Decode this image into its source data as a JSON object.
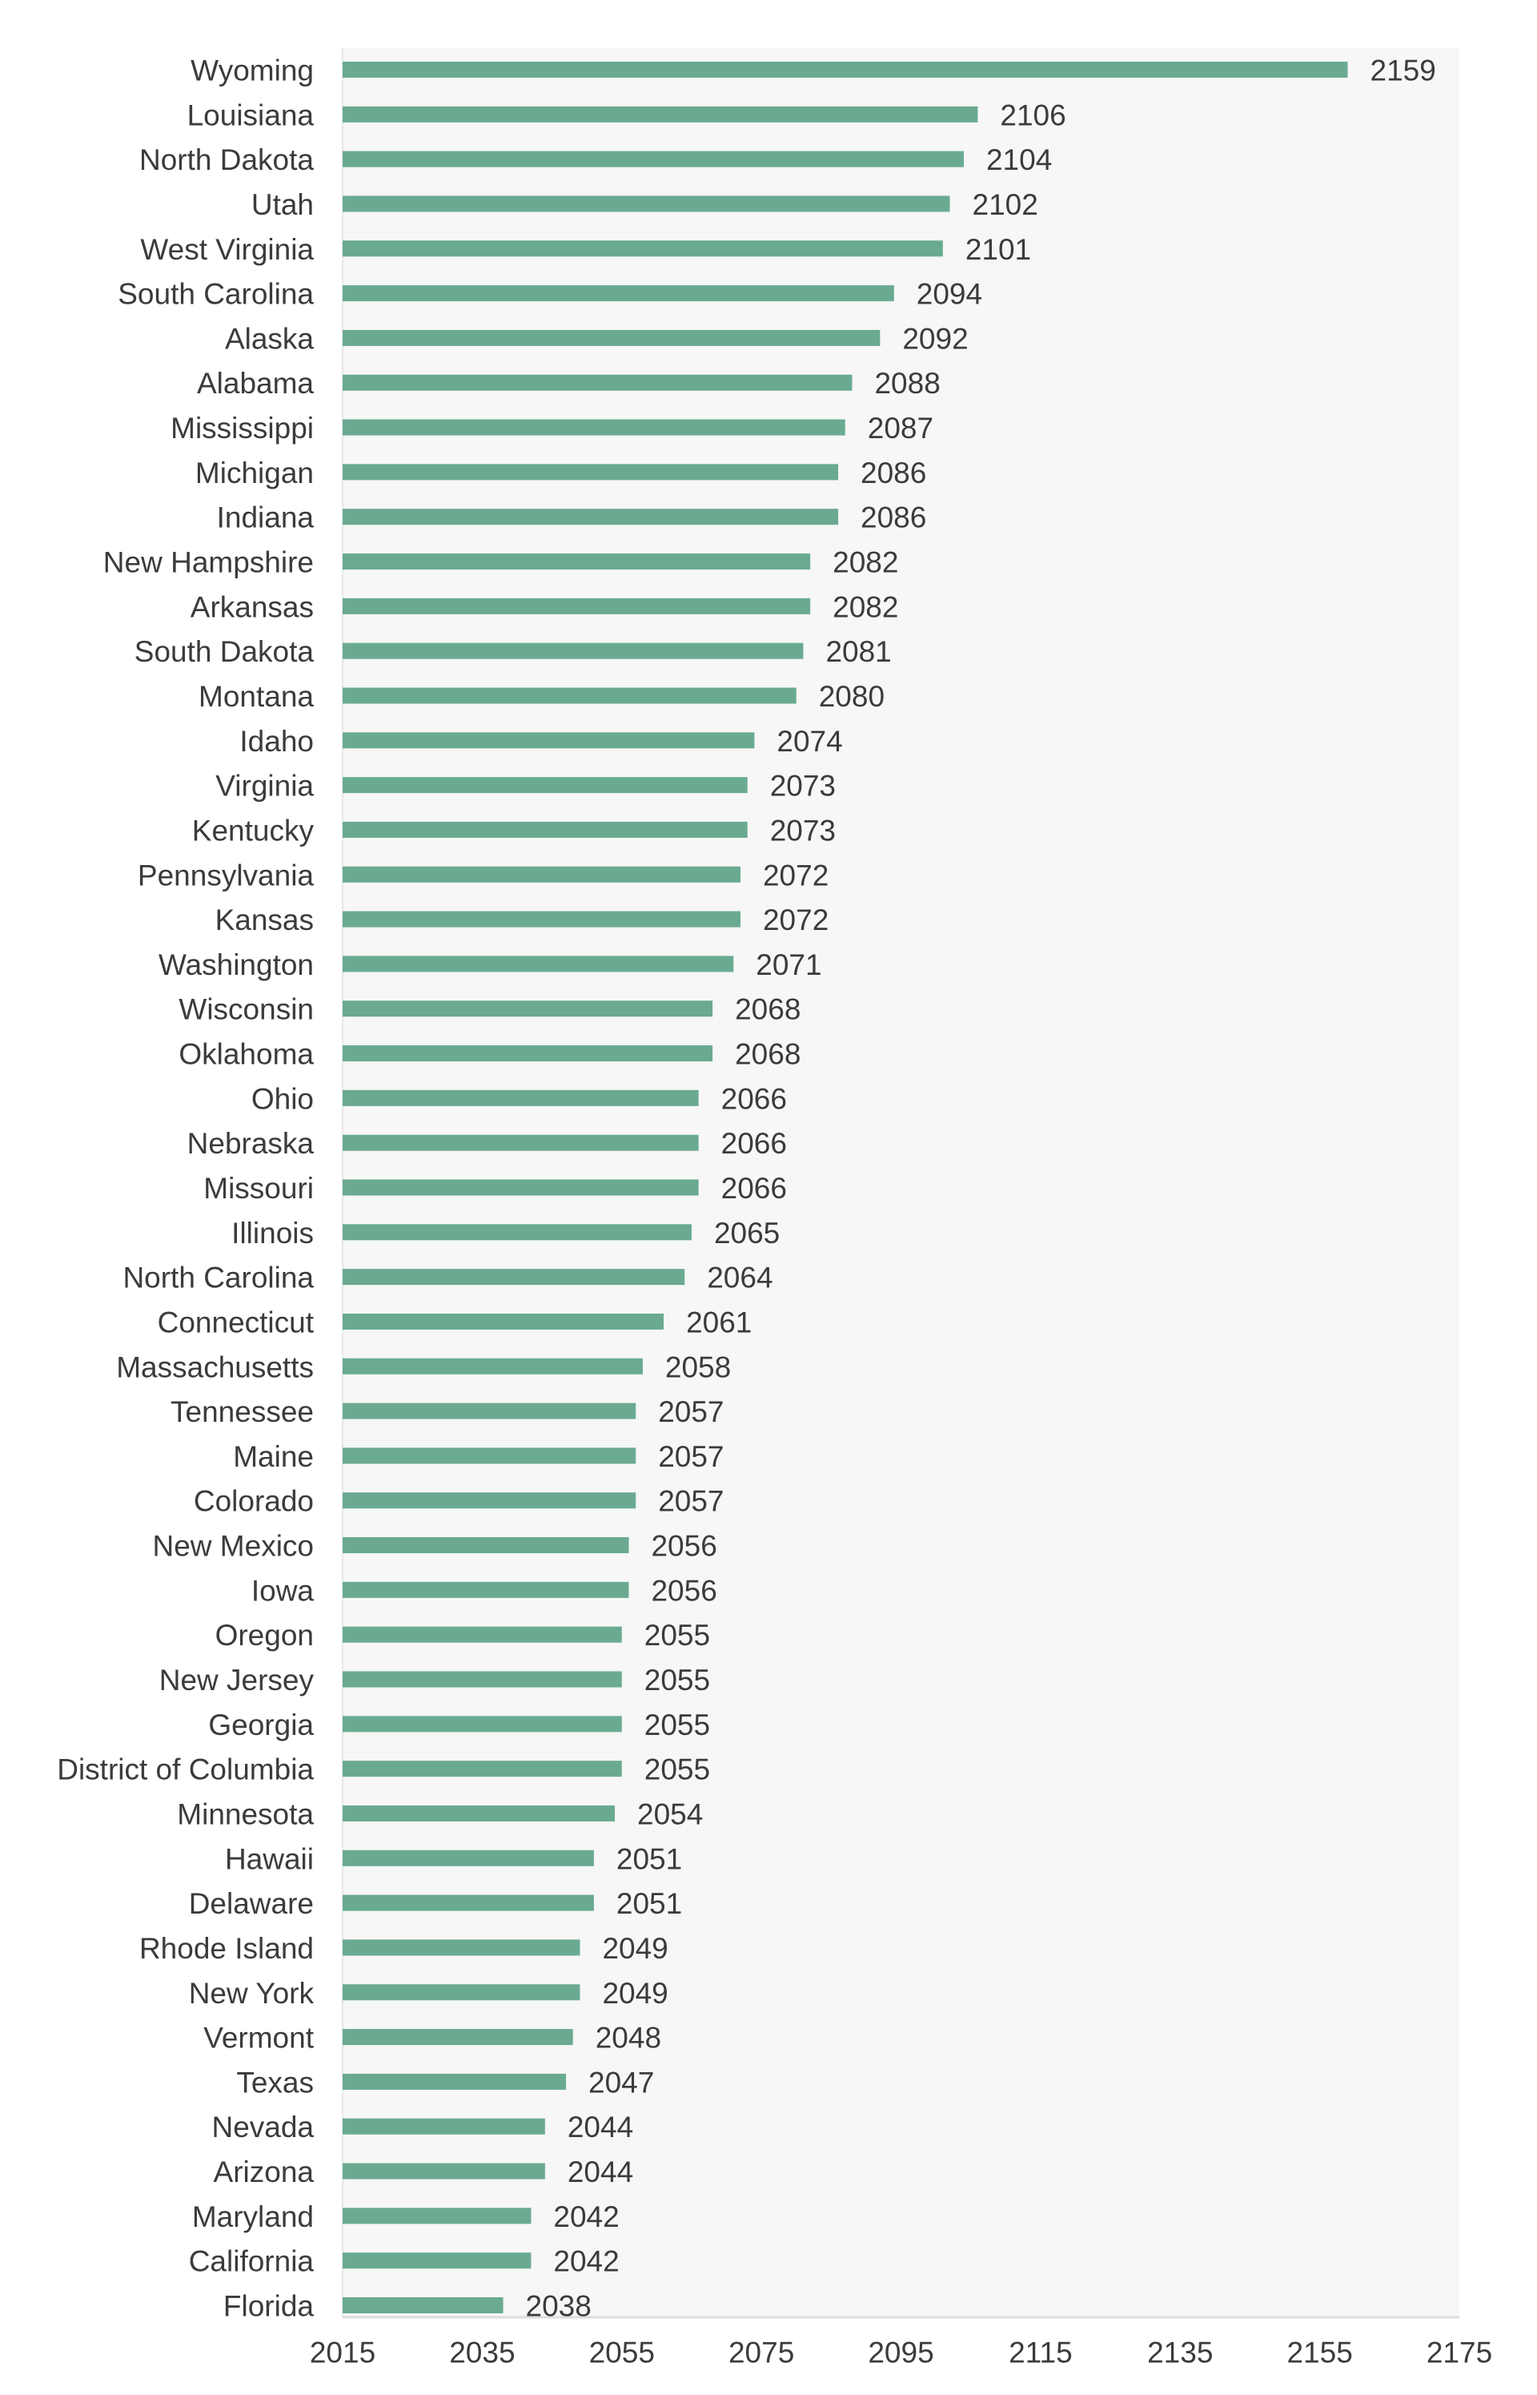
{
  "chart_data": {
    "type": "bar",
    "orientation": "horizontal",
    "title": "",
    "xlabel": "",
    "ylabel": "",
    "xlim": [
      2015,
      2175
    ],
    "xticks": [
      2015,
      2035,
      2055,
      2075,
      2095,
      2115,
      2135,
      2155,
      2175
    ],
    "grid": false,
    "legend": "none",
    "bar_color": "#6aaa91",
    "panel_color": "#f6f7f6",
    "categories": [
      "Wyoming",
      "Louisiana",
      "North Dakota",
      "Utah",
      "West Virginia",
      "South Carolina",
      "Alaska",
      "Alabama",
      "Mississippi",
      "Michigan",
      "Indiana",
      "New Hampshire",
      "Arkansas",
      "South Dakota",
      "Montana",
      "Idaho",
      "Virginia",
      "Kentucky",
      "Pennsylvania",
      "Kansas",
      "Washington",
      "Wisconsin",
      "Oklahoma",
      "Ohio",
      "Nebraska",
      "Missouri",
      "Illinois",
      "North Carolina",
      "Connecticut",
      "Massachusetts",
      "Tennessee",
      "Maine",
      "Colorado",
      "New Mexico",
      "Iowa",
      "Oregon",
      "New Jersey",
      "Georgia",
      "District of Columbia",
      "Minnesota",
      "Hawaii",
      "Delaware",
      "Rhode Island",
      "New York",
      "Vermont",
      "Texas",
      "Nevada",
      "Arizona",
      "Maryland",
      "California",
      "Florida"
    ],
    "values": [
      2159,
      2106,
      2104,
      2102,
      2101,
      2094,
      2092,
      2088,
      2087,
      2086,
      2086,
      2082,
      2082,
      2081,
      2080,
      2074,
      2073,
      2073,
      2072,
      2072,
      2071,
      2068,
      2068,
      2066,
      2066,
      2066,
      2065,
      2064,
      2061,
      2058,
      2057,
      2057,
      2057,
      2056,
      2056,
      2055,
      2055,
      2055,
      2055,
      2054,
      2051,
      2051,
      2049,
      2049,
      2048,
      2047,
      2044,
      2044,
      2042,
      2042,
      2038
    ]
  }
}
